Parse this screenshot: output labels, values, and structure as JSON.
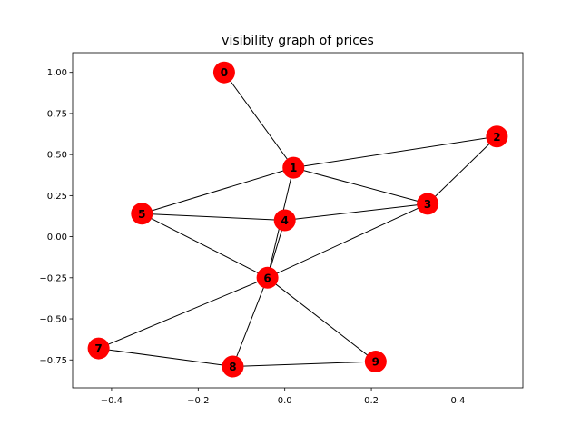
{
  "chart_data": {
    "type": "network",
    "title": "visibility graph of prices",
    "xlim": [
      -0.49,
      0.55
    ],
    "ylim": [
      -0.92,
      1.12
    ],
    "x_ticks": [
      {
        "value": -0.4,
        "label": "−0.4"
      },
      {
        "value": -0.2,
        "label": "−0.2"
      },
      {
        "value": 0.0,
        "label": "0.0"
      },
      {
        "value": 0.2,
        "label": "0.2"
      },
      {
        "value": 0.4,
        "label": "0.4"
      }
    ],
    "y_ticks": [
      {
        "value": 1.0,
        "label": "1.00"
      },
      {
        "value": 0.75,
        "label": "0.75"
      },
      {
        "value": 0.5,
        "label": "0.50"
      },
      {
        "value": 0.25,
        "label": "0.25"
      },
      {
        "value": 0.0,
        "label": "0.00"
      },
      {
        "value": -0.25,
        "label": "−0.25"
      },
      {
        "value": -0.5,
        "label": "−0.50"
      },
      {
        "value": -0.75,
        "label": "−0.75"
      }
    ],
    "node_color": "#ff0000",
    "edge_color": "#000000",
    "nodes": [
      {
        "id": "0",
        "x": -0.14,
        "y": 1.0
      },
      {
        "id": "1",
        "x": 0.02,
        "y": 0.42
      },
      {
        "id": "2",
        "x": 0.49,
        "y": 0.61
      },
      {
        "id": "3",
        "x": 0.33,
        "y": 0.2
      },
      {
        "id": "4",
        "x": 0.0,
        "y": 0.1
      },
      {
        "id": "5",
        "x": -0.33,
        "y": 0.14
      },
      {
        "id": "6",
        "x": -0.04,
        "y": -0.25
      },
      {
        "id": "7",
        "x": -0.43,
        "y": -0.68
      },
      {
        "id": "8",
        "x": -0.12,
        "y": -0.79
      },
      {
        "id": "9",
        "x": 0.21,
        "y": -0.76
      }
    ],
    "edges": [
      [
        "0",
        "1"
      ],
      [
        "1",
        "2"
      ],
      [
        "1",
        "3"
      ],
      [
        "1",
        "5"
      ],
      [
        "1",
        "6"
      ],
      [
        "2",
        "3"
      ],
      [
        "3",
        "4"
      ],
      [
        "3",
        "6"
      ],
      [
        "4",
        "5"
      ],
      [
        "4",
        "6"
      ],
      [
        "5",
        "6"
      ],
      [
        "6",
        "7"
      ],
      [
        "6",
        "8"
      ],
      [
        "6",
        "9"
      ],
      [
        "7",
        "8"
      ],
      [
        "8",
        "9"
      ]
    ]
  }
}
